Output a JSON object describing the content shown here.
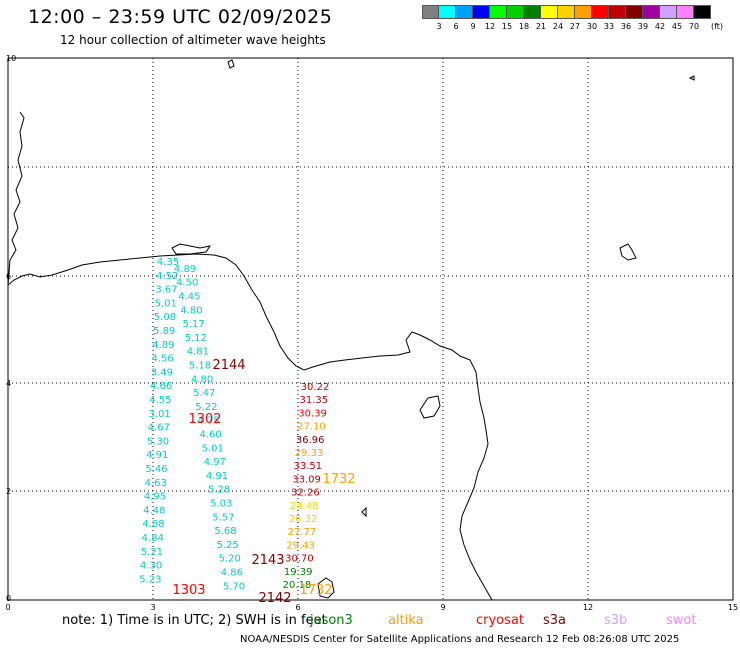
{
  "header": {
    "title": "12:00 – 23:59 UTC 02/09/2025",
    "subtitle": "12 hour collection of altimeter wave heights"
  },
  "legend": {
    "unit": "(ft)",
    "colors": [
      "#808080",
      "#00ffff",
      "#00a0ff",
      "#0000ff",
      "#00ff00",
      "#00d000",
      "#008000",
      "#ffff00",
      "#ffd000",
      "#ffa000",
      "#ff0000",
      "#c00000",
      "#800000",
      "#a000a0",
      "#d0a0ff",
      "#ff80ff",
      "#000000"
    ],
    "labels": [
      "3",
      "6",
      "9",
      "12",
      "15",
      "18",
      "21",
      "24",
      "27",
      "30",
      "33",
      "36",
      "39",
      "42",
      "45",
      "70"
    ]
  },
  "map": {
    "x_ticks": [
      "0",
      "3",
      "6",
      "9",
      "12",
      "15"
    ],
    "y_ticks": [
      "10",
      "6",
      "4",
      "2",
      "0"
    ],
    "pass_labels": [
      {
        "text": "2144",
        "color": "#800000"
      },
      {
        "text": "1302",
        "color": "#ff0000"
      },
      {
        "text": "1732",
        "color": "#ffa000"
      },
      {
        "text": "2143",
        "color": "#800000"
      },
      {
        "text": "1303",
        "color": "#ff0000"
      },
      {
        "text": "2142",
        "color": "#800000"
      },
      {
        "text": "1732",
        "color": "#ffa000"
      }
    ],
    "cyan_track_1": [
      "4.35",
      "4.89",
      "4.52",
      "4.50",
      "3.67",
      "4.45",
      "5.01",
      "4.80",
      "5.08",
      "5.17",
      "5.89",
      "5.12",
      "4.89",
      "4.81",
      "4.56",
      "5.18",
      "3.49",
      "4.80",
      "4.66",
      "5.47",
      "4.55",
      "5.22",
      "3.01",
      "4.75",
      "4.67",
      "4.60",
      "5.30",
      "5.01",
      "4.91",
      "4.97",
      "5.46",
      "4.91",
      "4.63",
      "5.28",
      "4.95",
      "5.03",
      "4.48",
      "5.57",
      "4.88",
      "5.68",
      "4.84",
      "5.25",
      "5.21",
      "5.20",
      "4.30",
      "4.86",
      "5.23",
      "5.70"
    ],
    "sat_track_2": [
      {
        "text": "30.22",
        "color": "#c00000"
      },
      {
        "text": "31.35",
        "color": "#c00000"
      },
      {
        "text": "30.39",
        "color": "#ff0000"
      },
      {
        "text": "27.10",
        "color": "#ffa000"
      },
      {
        "text": "36.96",
        "color": "#800000"
      },
      {
        "text": "29.33",
        "color": "#ffa000"
      },
      {
        "text": "33.51",
        "color": "#c00000"
      },
      {
        "text": "33.09",
        "color": "#c00000"
      },
      {
        "text": "32.26",
        "color": "#c00000"
      },
      {
        "text": "24.48",
        "color": "#ffd000"
      },
      {
        "text": "26.32",
        "color": "#ffd000"
      },
      {
        "text": "27.77",
        "color": "#ffa000"
      },
      {
        "text": "29.43",
        "color": "#ffa000"
      },
      {
        "text": "30.70",
        "color": "#c00000"
      },
      {
        "text": "19.39",
        "color": "#008000"
      },
      {
        "text": "20.18",
        "color": "#008000"
      }
    ]
  },
  "footer": {
    "note": "note: 1) Time is in UTC; 2) SWH is in feet",
    "satellites": [
      {
        "name": "jason3",
        "color": "#008000"
      },
      {
        "name": "altika",
        "color": "#ffa000"
      },
      {
        "name": "cryosat",
        "color": "#ff0000"
      },
      {
        "name": "s3a",
        "color": "#800000"
      },
      {
        "name": "s3b",
        "color": "#d0a0ff"
      },
      {
        "name": "swot",
        "color": "#ff80ff"
      }
    ],
    "credit": "NOAA/NESDIS Center for Satellite Applications and Research   12 Feb 08:26:08 UTC 2025"
  }
}
